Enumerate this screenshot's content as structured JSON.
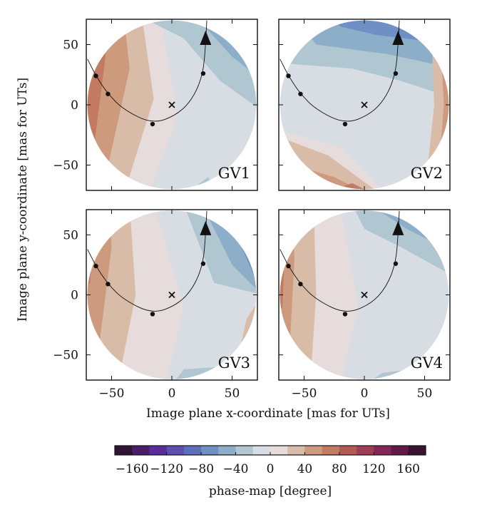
{
  "chart_data": {
    "type": "contour-phase-map",
    "panels": [
      {
        "name": "GV1",
        "label": "GV1"
      },
      {
        "name": "GV2",
        "label": "GV2"
      },
      {
        "name": "GV3",
        "label": "GV3"
      },
      {
        "name": "GV4",
        "label": "GV4"
      }
    ],
    "xlabel": "Image plane x-coordinate [mas for UTs]",
    "ylabel": "Image plane y-coordinate [mas for UTs]",
    "xlim": [
      -71,
      71
    ],
    "ylim": [
      -71,
      71
    ],
    "xticks": [
      -50,
      0,
      50
    ],
    "yticks": [
      50,
      0,
      -50
    ],
    "xtick_labels": [
      "−50",
      "0",
      "50"
    ],
    "ytick_labels": [
      "50",
      "0",
      "−50"
    ],
    "field_radius": 70,
    "trajectory_points": [
      [
        -63,
        24
      ],
      [
        -53,
        9
      ],
      [
        -16,
        -16
      ],
      [
        26,
        26
      ]
    ],
    "trajectory_arrow": [
      28,
      55
    ],
    "center_marker": [
      0,
      0
    ],
    "colorbar": {
      "label": "phase-map [degree]",
      "range": [
        -180,
        180
      ],
      "tick_values": [
        -160,
        -120,
        -80,
        -40,
        0,
        40,
        80,
        120,
        160
      ],
      "tick_labels": [
        "−160",
        "−120",
        "−80",
        "−40",
        "0",
        "40",
        "80",
        "120",
        "160"
      ],
      "colors": [
        "#2f1436",
        "#4a1e6b",
        "#5a2e9a",
        "#5e4fae",
        "#5e6fba",
        "#6f90c4",
        "#8caec8",
        "#b0c6d0",
        "#d8dde4",
        "#e6dcdc",
        "#d9bca8",
        "#cd9a7e",
        "#c27a62",
        "#b35a55",
        "#9d3d56",
        "#832755",
        "#641a48",
        "#3a1330"
      ]
    }
  }
}
